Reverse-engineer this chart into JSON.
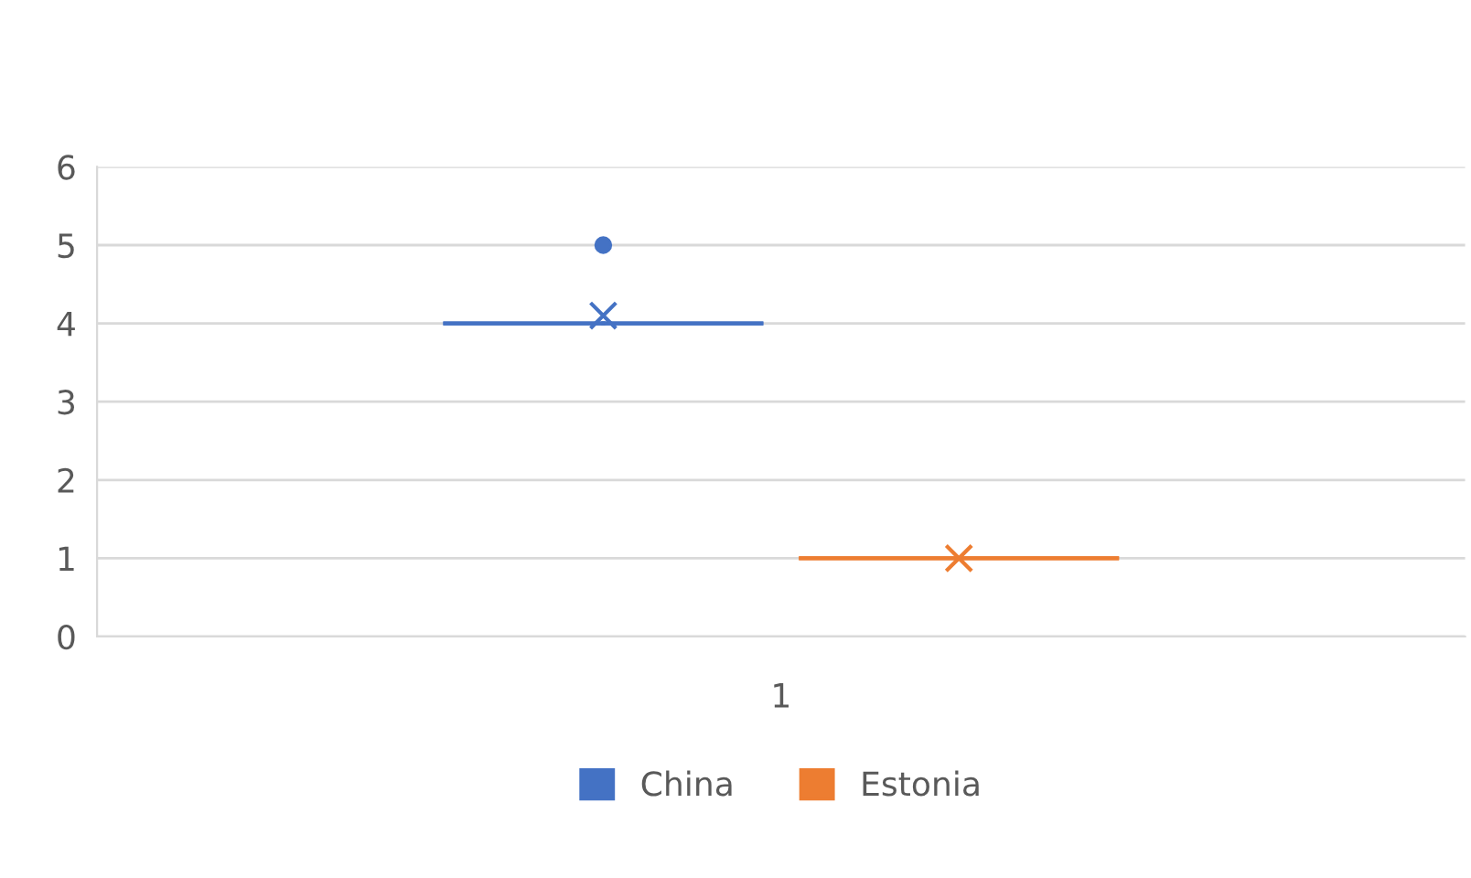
{
  "chart_data": {
    "type": "box",
    "categories": [
      "1"
    ],
    "series": [
      {
        "name": "China",
        "color": "#4472c4",
        "boxes": [
          {
            "low": 4,
            "q1": 4,
            "median": 4,
            "q3": 4,
            "high": 4,
            "mean": 4.1,
            "outliers": [
              5
            ]
          }
        ]
      },
      {
        "name": "Estonia",
        "color": "#ed7d31",
        "boxes": [
          {
            "low": 1,
            "q1": 1,
            "median": 1,
            "q3": 1,
            "high": 1,
            "mean": 1
          }
        ]
      }
    ],
    "ylim": [
      0,
      6
    ],
    "yticks": [
      0,
      1,
      2,
      3,
      4,
      5,
      6
    ],
    "grid": "y",
    "legend": "bottom"
  }
}
